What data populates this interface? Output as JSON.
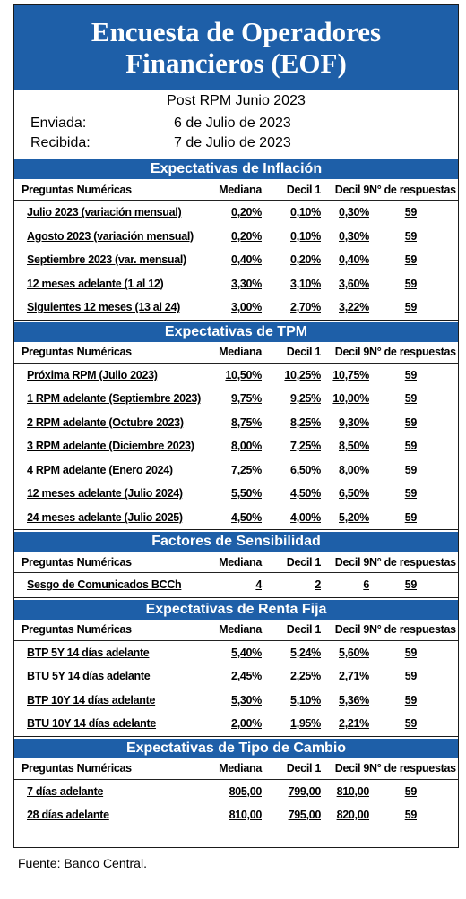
{
  "title": {
    "line1": "Encuesta de Operadores",
    "line2": "Financieros (EOF)"
  },
  "meta": {
    "post": "Post RPM Junio 2023",
    "sent_label": "Enviada:",
    "sent_value": "6 de Julio de 2023",
    "received_label": "Recibida:",
    "received_value": "7 de Julio de 2023"
  },
  "columns": {
    "question": "Preguntas Numéricas",
    "median": "Mediana",
    "d1": "Decil 1",
    "d9": "Decil 9",
    "count": "N° de respuestas"
  },
  "sections": [
    {
      "title": "Expectativas de Inflación",
      "rows": [
        {
          "q": "Julio 2023 (variación mensual)",
          "median": "0,20%",
          "d1": "0,10%",
          "d9": "0,30%",
          "n": "59"
        },
        {
          "q": "Agosto 2023 (variación mensual)",
          "median": "0,20%",
          "d1": "0,10%",
          "d9": "0,30%",
          "n": "59"
        },
        {
          "q": "Septiembre 2023 (var. mensual)",
          "median": "0,40%",
          "d1": "0,20%",
          "d9": "0,40%",
          "n": "59"
        },
        {
          "q": "12 meses adelante (1 al 12)",
          "median": "3,30%",
          "d1": "3,10%",
          "d9": "3,60%",
          "n": "59"
        },
        {
          "q": "Siguientes 12 meses (13 al 24)",
          "median": "3,00%",
          "d1": "2,70%",
          "d9": "3,22%",
          "n": "59"
        }
      ]
    },
    {
      "title": "Expectativas de TPM",
      "rows": [
        {
          "q": "Próxima RPM (Julio 2023)",
          "median": "10,50%",
          "d1": "10,25%",
          "d9": "10,75%",
          "n": "59"
        },
        {
          "q": "1 RPM adelante (Septiembre 2023)",
          "median": "9,75%",
          "d1": "9,25%",
          "d9": "10,00%",
          "n": "59"
        },
        {
          "q": "2 RPM adelante (Octubre 2023)",
          "median": "8,75%",
          "d1": "8,25%",
          "d9": "9,30%",
          "n": "59"
        },
        {
          "q": "3 RPM adelante (Diciembre 2023)",
          "median": "8,00%",
          "d1": "7,25%",
          "d9": "8,50%",
          "n": "59"
        },
        {
          "q": "4 RPM adelante (Enero 2024)",
          "median": "7,25%",
          "d1": "6,50%",
          "d9": "8,00%",
          "n": "59"
        },
        {
          "q": "12 meses adelante (Julio 2024)",
          "median": "5,50%",
          "d1": "4,50%",
          "d9": "6,50%",
          "n": "59"
        },
        {
          "q": "24 meses adelante (Julio 2025)",
          "median": "4,50%",
          "d1": "4,00%",
          "d9": "5,20%",
          "n": "59"
        }
      ]
    },
    {
      "title": "Factores de Sensibilidad",
      "rows": [
        {
          "q": "Sesgo de Comunicados BCCh",
          "median": "4",
          "d1": "2",
          "d9": "6",
          "n": "59"
        }
      ]
    },
    {
      "title": "Expectativas  de Renta Fija",
      "rows": [
        {
          "q": "BTP 5Y 14 días adelante",
          "median": "5,40%",
          "d1": "5,24%",
          "d9": "5,60%",
          "n": "59"
        },
        {
          "q": "BTU 5Y 14 días adelante",
          "median": "2,45%",
          "d1": "2,25%",
          "d9": "2,71%",
          "n": "59"
        },
        {
          "q": "BTP 10Y 14 días adelante",
          "median": "5,30%",
          "d1": "5,10%",
          "d9": "5,36%",
          "n": "59"
        },
        {
          "q": "BTU 10Y 14 días adelante",
          "median": "2,00%",
          "d1": "1,95%",
          "d9": "2,21%",
          "n": "59"
        }
      ]
    },
    {
      "title": "Expectativas  de Tipo de Cambio",
      "rows": [
        {
          "q": "7 días adelante",
          "median": "805,00",
          "d1": "799,00",
          "d9": "810,00",
          "n": "59"
        },
        {
          "q": "28 días adelante",
          "median": "810,00",
          "d1": "795,00",
          "d9": "820,00",
          "n": "59"
        }
      ]
    }
  ],
  "footer": "Fuente: Banco Central.",
  "colors": {
    "header_blue": "#1e5fa8"
  }
}
